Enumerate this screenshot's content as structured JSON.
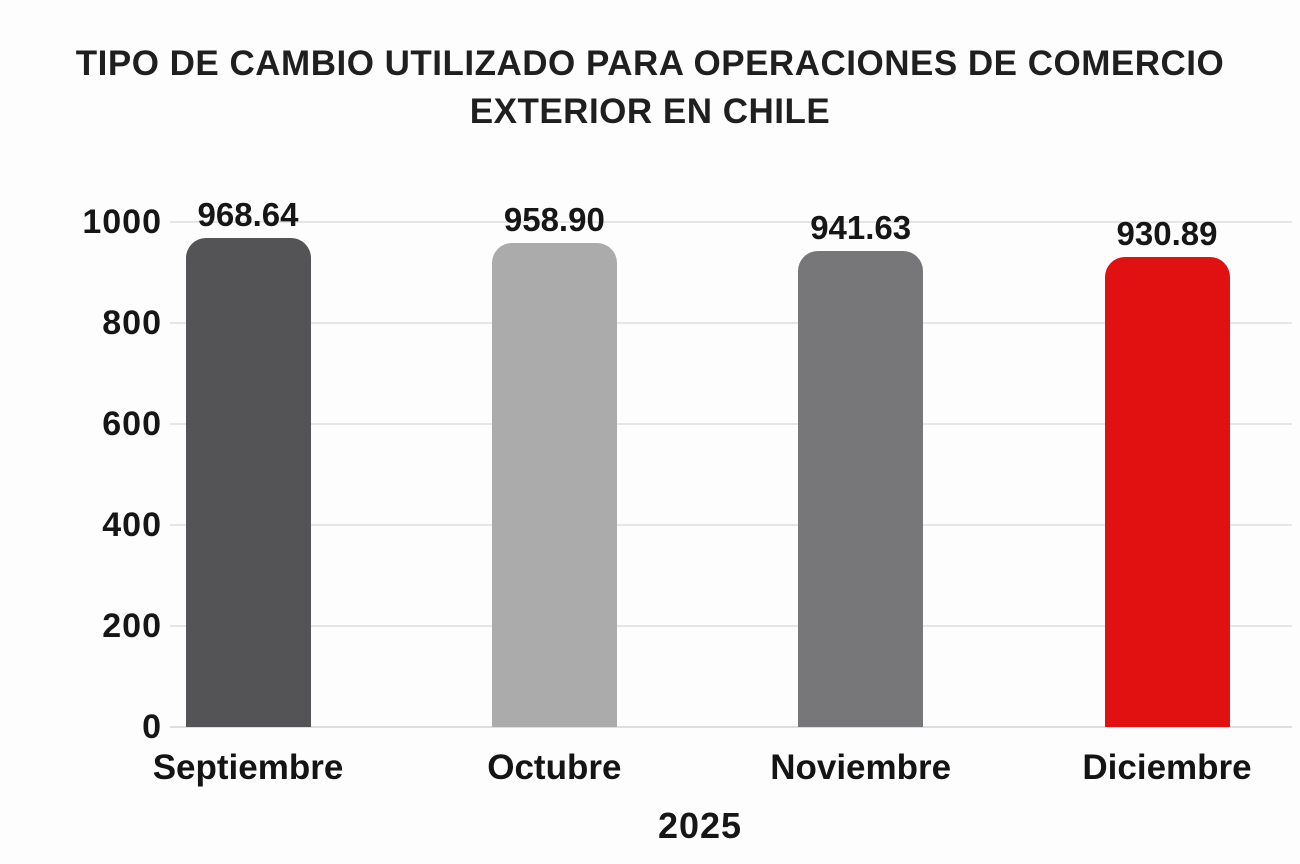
{
  "chart_data": {
    "type": "bar",
    "title": "TIPO DE CAMBIO UTILIZADO PARA OPERACIONES DE COMERCIO EXTERIOR EN CHILE",
    "categories": [
      "Septiembre",
      "Octubre",
      "Noviembre",
      "Diciembre"
    ],
    "values": [
      968.64,
      958.9,
      941.63,
      930.89
    ],
    "value_labels": [
      "968.64",
      "958.90",
      "941.63",
      "930.89"
    ],
    "bar_colors": [
      "#545456",
      "#ababab",
      "#777779",
      "#e21111"
    ],
    "xlabel": "2025",
    "ylabel": "",
    "ylim": [
      0,
      1000
    ],
    "yticks": [
      0,
      200,
      400,
      600,
      800,
      1000
    ],
    "ytick_labels": [
      "0",
      "200",
      "400",
      "600",
      "800",
      "1000"
    ],
    "grid": true,
    "gridline_color": "#e6e6e6",
    "baseline_color": "#dedede",
    "title_color": "#1f1f1f",
    "label_color": "#161616",
    "legend": "none"
  }
}
